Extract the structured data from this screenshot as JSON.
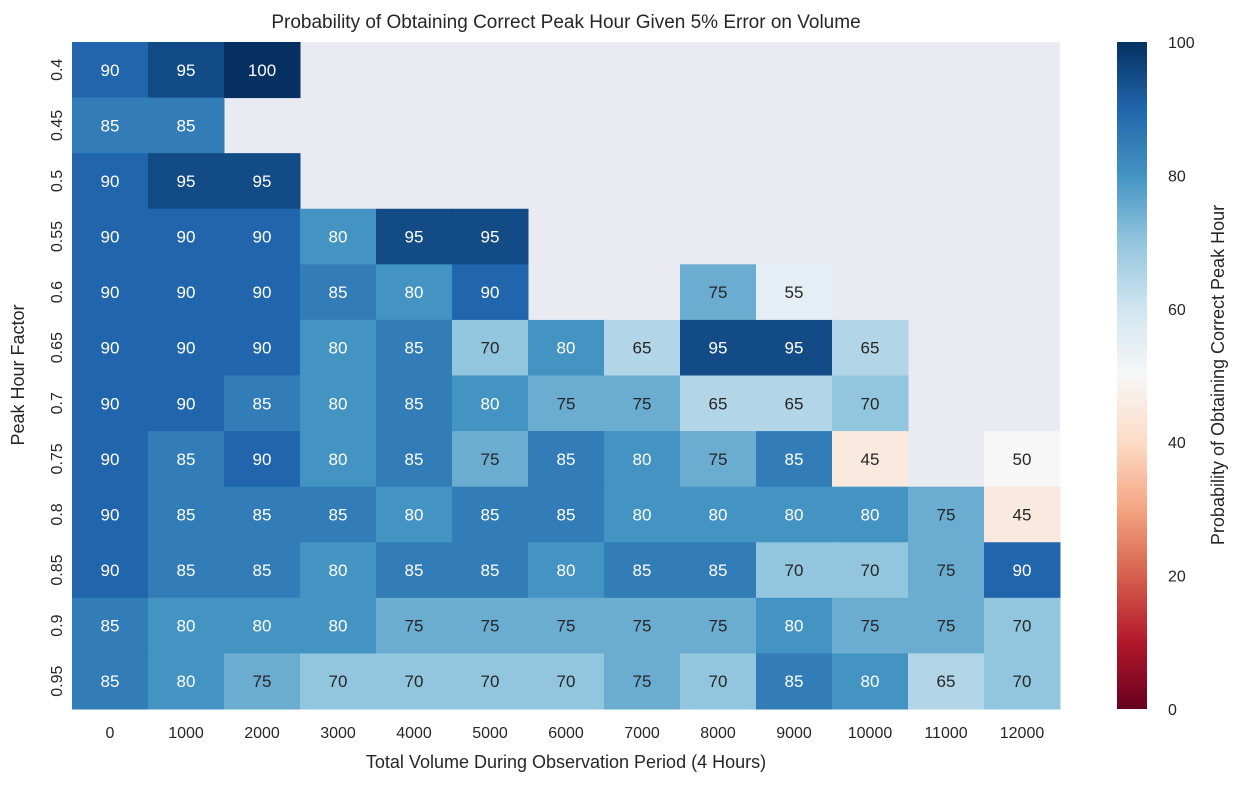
{
  "chart_data": {
    "type": "heatmap",
    "title": "Probability of Obtaining Correct Peak Hour Given 5% Error on Volume",
    "xlabel": "Total Volume During Observation Period (4 Hours)",
    "ylabel": "Peak Hour Factor",
    "x_categories": [
      "0",
      "1000",
      "2000",
      "3000",
      "4000",
      "5000",
      "6000",
      "7000",
      "8000",
      "9000",
      "10000",
      "11000",
      "12000"
    ],
    "y_categories": [
      "0.4",
      "0.45",
      "0.5",
      "0.55",
      "0.6",
      "0.65",
      "0.7",
      "0.75",
      "0.8",
      "0.85",
      "0.9",
      "0.95"
    ],
    "values": [
      [
        90,
        95,
        100,
        null,
        null,
        null,
        null,
        null,
        null,
        null,
        null,
        null,
        null
      ],
      [
        85,
        85,
        null,
        null,
        null,
        null,
        null,
        null,
        null,
        null,
        null,
        null,
        null
      ],
      [
        90,
        95,
        95,
        null,
        null,
        null,
        null,
        null,
        null,
        null,
        null,
        null,
        null
      ],
      [
        90,
        90,
        90,
        80,
        95,
        95,
        null,
        null,
        null,
        null,
        null,
        null,
        null
      ],
      [
        90,
        90,
        90,
        85,
        80,
        90,
        null,
        null,
        75,
        55,
        null,
        null,
        null
      ],
      [
        90,
        90,
        90,
        80,
        85,
        70,
        80,
        65,
        95,
        95,
        65,
        null,
        null
      ],
      [
        90,
        90,
        85,
        80,
        85,
        80,
        75,
        75,
        65,
        65,
        70,
        null,
        null
      ],
      [
        90,
        85,
        90,
        80,
        85,
        75,
        85,
        80,
        75,
        85,
        45,
        null,
        50
      ],
      [
        90,
        85,
        85,
        85,
        80,
        85,
        85,
        80,
        80,
        80,
        80,
        75,
        45
      ],
      [
        90,
        85,
        85,
        80,
        85,
        85,
        80,
        85,
        85,
        70,
        70,
        75,
        90
      ],
      [
        85,
        80,
        80,
        80,
        75,
        75,
        75,
        75,
        75,
        80,
        75,
        75,
        70
      ],
      [
        85,
        80,
        75,
        70,
        70,
        70,
        70,
        75,
        70,
        85,
        80,
        65,
        70
      ]
    ],
    "colormap": "RdBu",
    "vmin": 0,
    "vmax": 100,
    "colorbar": {
      "label": "Probability of Obtaining Correct Peak Hour",
      "ticks": [
        "0",
        "20",
        "40",
        "60",
        "80",
        "100"
      ]
    },
    "missing_color": "#eaeaf2",
    "annotations": true,
    "grid": false
  }
}
